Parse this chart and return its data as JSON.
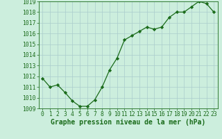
{
  "x": [
    0,
    1,
    2,
    3,
    4,
    5,
    6,
    7,
    8,
    9,
    10,
    11,
    12,
    13,
    14,
    15,
    16,
    17,
    18,
    19,
    20,
    21,
    22,
    23
  ],
  "y": [
    1011.8,
    1011.0,
    1011.2,
    1010.5,
    1009.7,
    1009.2,
    1009.2,
    1009.8,
    1011.0,
    1012.6,
    1013.7,
    1015.4,
    1015.8,
    1016.2,
    1016.6,
    1016.4,
    1016.6,
    1017.5,
    1018.0,
    1018.0,
    1018.5,
    1019.0,
    1018.8,
    1018.0
  ],
  "ylim": [
    1009,
    1019
  ],
  "yticks": [
    1009,
    1010,
    1011,
    1012,
    1013,
    1014,
    1015,
    1016,
    1017,
    1018,
    1019
  ],
  "xticks": [
    0,
    1,
    2,
    3,
    4,
    5,
    6,
    7,
    8,
    9,
    10,
    11,
    12,
    13,
    14,
    15,
    16,
    17,
    18,
    19,
    20,
    21,
    22,
    23
  ],
  "xlabel": "Graphe pression niveau de la mer (hPa)",
  "line_color": "#1a6b1a",
  "marker_color": "#1a6b1a",
  "bg_color": "#cceedd",
  "grid_color": "#aacccc",
  "xlabel_color": "#1a6b1a",
  "tick_color": "#1a6b1a",
  "xlabel_fontsize": 7.0,
  "tick_fontsize": 5.8
}
